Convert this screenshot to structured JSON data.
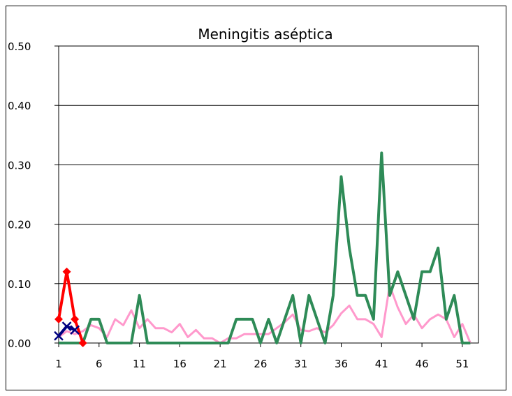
{
  "chart_data": {
    "type": "line",
    "title": "Meningitis aséptica",
    "xlabel": "",
    "ylabel": "",
    "xlim": [
      1,
      53
    ],
    "ylim": [
      0,
      0.5
    ],
    "x_tick_labels": [
      "1",
      "6",
      "11",
      "16",
      "21",
      "26",
      "31",
      "36",
      "41",
      "46",
      "51"
    ],
    "x_tick_values": [
      1,
      6,
      11,
      16,
      21,
      26,
      31,
      36,
      41,
      46,
      51
    ],
    "y_tick_labels": [
      "0.00",
      "0.10",
      "0.20",
      "0.30",
      "0.40",
      "0.50"
    ],
    "y_tick_values": [
      0,
      0.1,
      0.2,
      0.3,
      0.4,
      0.5
    ],
    "grid": "horizontal",
    "legend": "none",
    "series": [
      {
        "color": "#ff99cc",
        "marker": "none",
        "x": [
          1,
          2,
          3,
          4,
          5,
          6,
          7,
          8,
          9,
          10,
          11,
          12,
          13,
          14,
          15,
          16,
          17,
          18,
          19,
          20,
          21,
          22,
          23,
          24,
          25,
          26,
          27,
          28,
          29,
          30,
          31,
          32,
          33,
          34,
          35,
          36,
          37,
          38,
          39,
          40,
          41,
          42,
          43,
          44,
          45,
          46,
          47,
          48,
          49,
          50,
          51,
          52
        ],
        "values": [
          0.01,
          0.02,
          0.015,
          0.02,
          0.03,
          0.025,
          0.01,
          0.04,
          0.03,
          0.055,
          0.025,
          0.04,
          0.025,
          0.025,
          0.018,
          0.032,
          0.01,
          0.022,
          0.008,
          0.008,
          0.0,
          0.008,
          0.008,
          0.015,
          0.015,
          0.015,
          0.015,
          0.025,
          0.035,
          0.048,
          0.022,
          0.02,
          0.025,
          0.018,
          0.03,
          0.05,
          0.063,
          0.04,
          0.04,
          0.032,
          0.01,
          0.097,
          0.06,
          0.032,
          0.048,
          0.025,
          0.04,
          0.048,
          0.04,
          0.01,
          0.032,
          0.0
        ]
      },
      {
        "color": "#2e8b57",
        "marker": "none",
        "x": [
          1,
          2,
          3,
          4,
          5,
          6,
          7,
          8,
          9,
          10,
          11,
          12,
          13,
          14,
          15,
          16,
          17,
          18,
          19,
          20,
          21,
          22,
          23,
          24,
          25,
          26,
          27,
          28,
          29,
          30,
          31,
          32,
          33,
          34,
          35,
          36,
          37,
          38,
          39,
          40,
          41,
          42,
          43,
          44,
          45,
          46,
          47,
          48,
          49,
          50,
          51,
          52
        ],
        "values": [
          0,
          0,
          0,
          0,
          0.04,
          0.04,
          0,
          0,
          0,
          0,
          0.08,
          0,
          0,
          0,
          0,
          0,
          0,
          0,
          0,
          0,
          0,
          0,
          0.04,
          0.04,
          0.04,
          0,
          0.04,
          0,
          0.04,
          0.08,
          0,
          0.08,
          0.04,
          0,
          0.08,
          0.28,
          0.16,
          0.08,
          0.08,
          0.04,
          0.32,
          0.08,
          0.12,
          0.08,
          0.04,
          0.12,
          0.12,
          0.16,
          0.04,
          0.08,
          0,
          0
        ]
      },
      {
        "color": "#ff0000",
        "marker": "diamond",
        "x": [
          1,
          2,
          3,
          4
        ],
        "values": [
          0.04,
          0.12,
          0.04,
          0.0
        ]
      },
      {
        "color": "#000080",
        "marker": "x",
        "x": [
          1,
          2,
          3
        ],
        "values": [
          0.012,
          0.028,
          0.022
        ]
      }
    ]
  }
}
